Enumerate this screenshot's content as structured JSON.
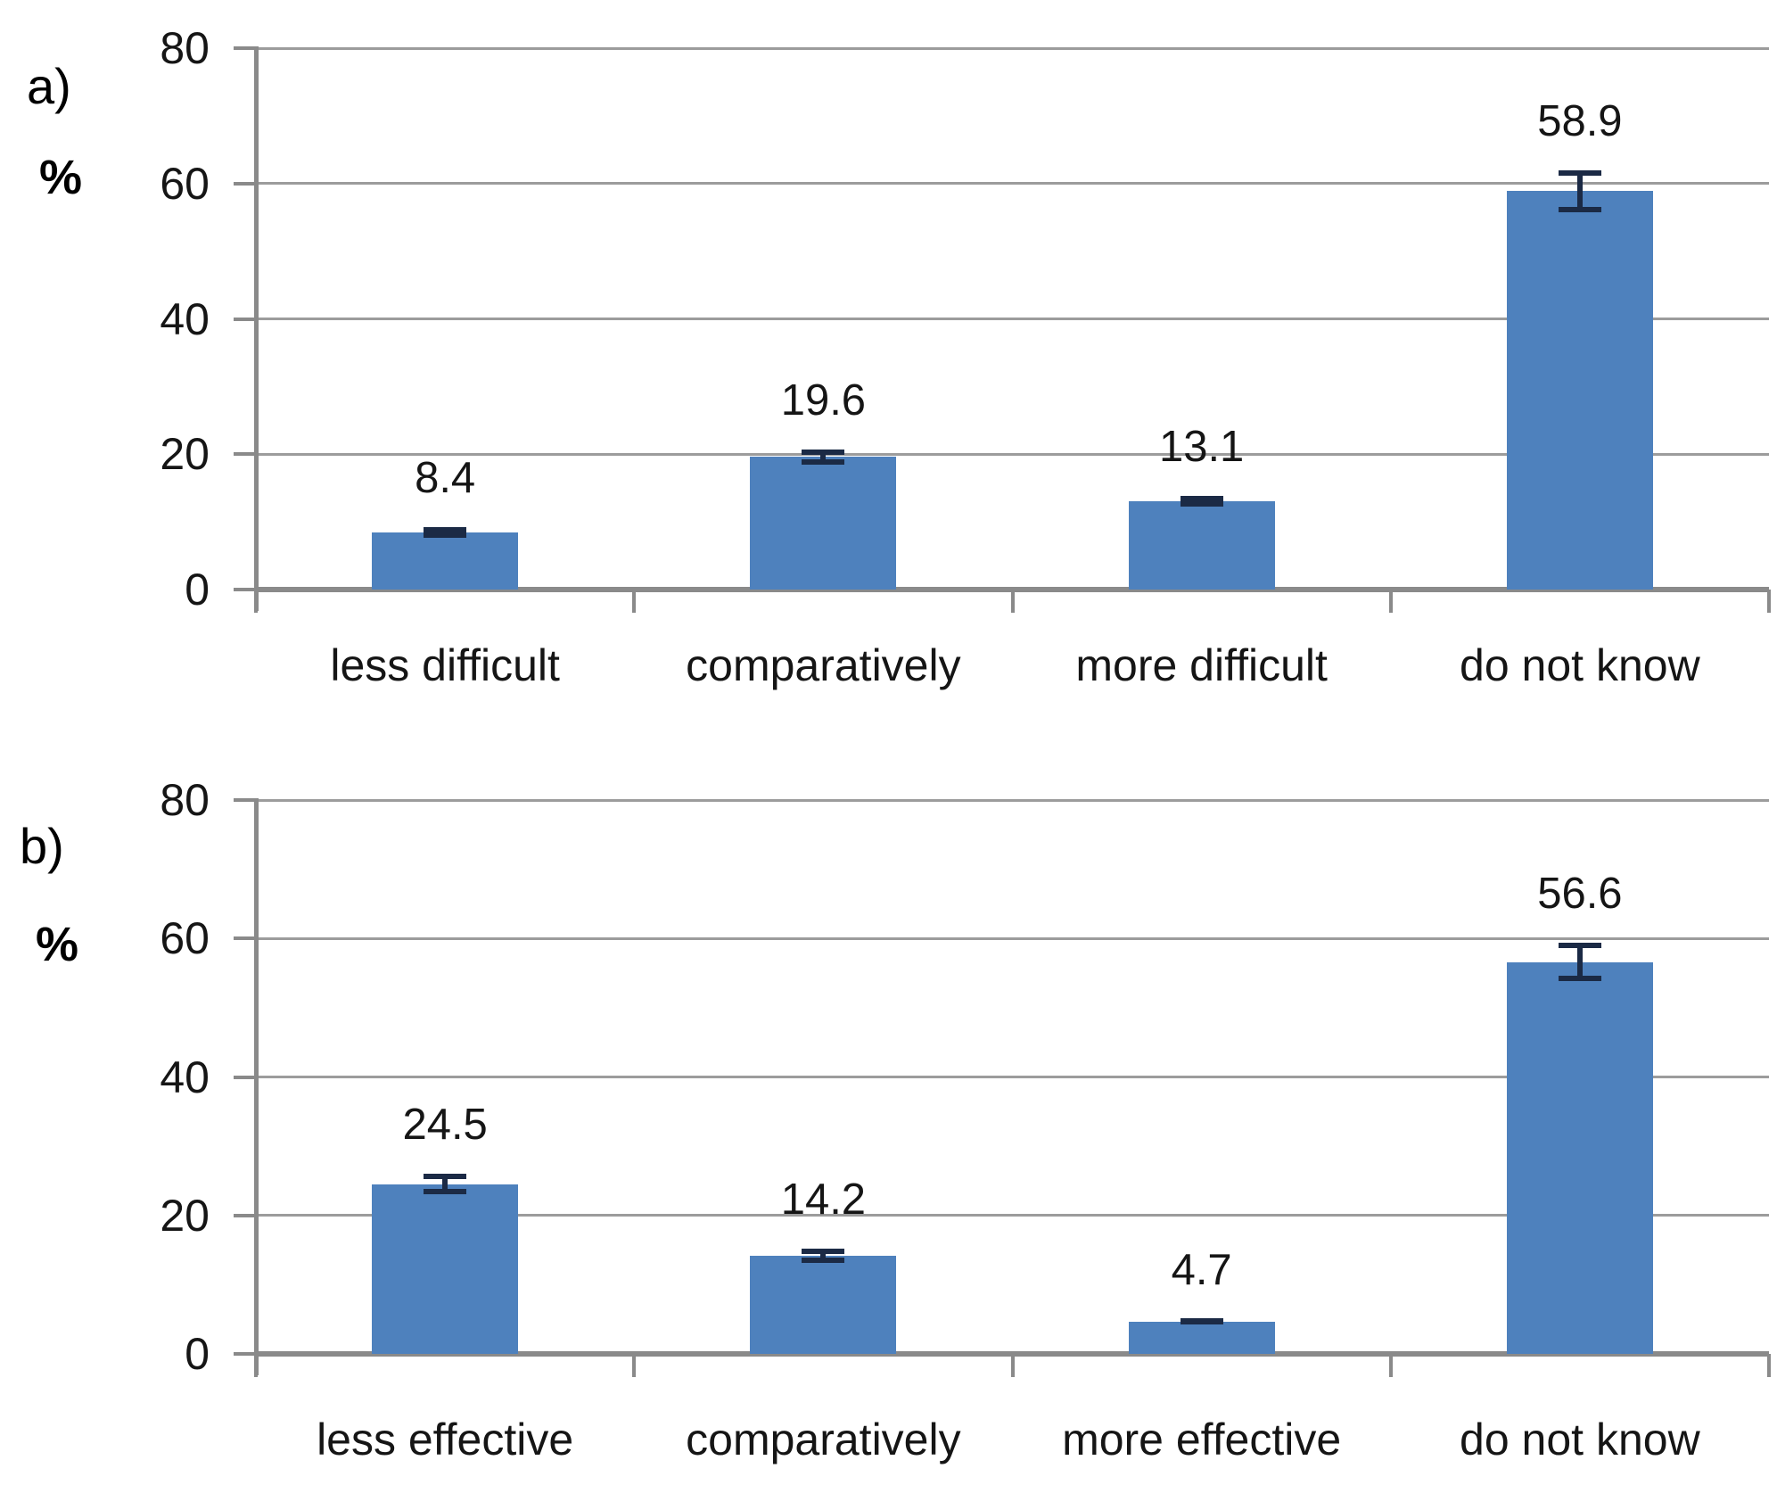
{
  "figure": {
    "panels": [
      {
        "label": "a)",
        "unit": "%"
      },
      {
        "label": "b)",
        "unit": "%"
      }
    ]
  },
  "chart_data": [
    {
      "type": "bar",
      "panel_label": "a)",
      "ylabel": "%",
      "xlabel": "",
      "categories": [
        "less difficult",
        "comparatively",
        "more difficult",
        "do not know"
      ],
      "values": [
        8.4,
        19.6,
        13.1,
        58.9
      ],
      "errors": [
        0.8,
        1.1,
        0.8,
        3.1
      ],
      "yticks": [
        0,
        20,
        40,
        60,
        80
      ],
      "ylim": [
        0,
        80
      ],
      "grid": true,
      "legend": "none",
      "bar_color": "#4E81BD",
      "error_color": "#1B2A45",
      "gridline_color": "#9C9C9C",
      "axis_color": "#8A8A8A"
    },
    {
      "type": "bar",
      "panel_label": "b)",
      "ylabel": "%",
      "xlabel": "",
      "categories": [
        "less effective",
        "comparatively",
        "more effective",
        "do not know"
      ],
      "values": [
        24.5,
        14.2,
        4.7,
        56.6
      ],
      "errors": [
        1.5,
        1.0,
        0.3,
        2.8
      ],
      "yticks": [
        0,
        20,
        40,
        60,
        80
      ],
      "ylim": [
        0,
        80
      ],
      "grid": true,
      "legend": "none",
      "bar_color": "#4E81BD",
      "error_color": "#1B2A45",
      "gridline_color": "#9C9C9C",
      "axis_color": "#8A8A8A"
    }
  ]
}
